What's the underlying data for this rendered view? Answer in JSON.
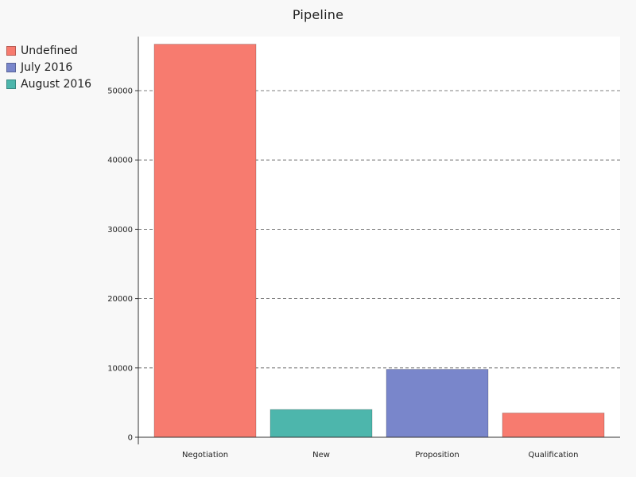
{
  "chart_data": {
    "type": "bar",
    "title": "Pipeline",
    "xlabel": "",
    "ylabel": "",
    "categories": [
      "Negotiation",
      "New",
      "Proposition",
      "Qualification"
    ],
    "values": [
      56700,
      4000,
      9800,
      3500
    ],
    "bar_series": [
      "Undefined",
      "August 2016",
      "July 2016",
      "Undefined"
    ],
    "series": [
      {
        "name": "Undefined",
        "color": "#f77b6f"
      },
      {
        "name": "July 2016",
        "color": "#7986cb"
      },
      {
        "name": "August 2016",
        "color": "#4db6ac"
      }
    ],
    "ylim": [
      0,
      57800
    ],
    "yticks": [
      0,
      10000,
      20000,
      30000,
      40000,
      50000
    ],
    "grid": true,
    "legend_position": "top-left"
  }
}
